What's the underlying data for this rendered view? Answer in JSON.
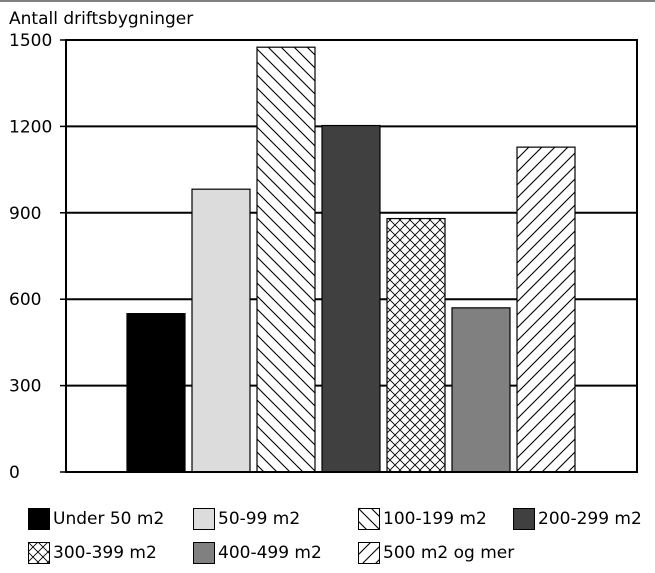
{
  "chart_data": {
    "type": "bar",
    "ylabel": "Antall driftsbygninger",
    "ylim": [
      0,
      1500
    ],
    "yticks": [
      "0",
      "300",
      "600",
      "900",
      "1200",
      "1500"
    ],
    "grid": true,
    "legend_position": "bottom",
    "series": [
      {
        "name": "Under 50 m2",
        "value": 550,
        "color": "#000000",
        "pattern": "solid"
      },
      {
        "name": "50-99 m2",
        "value": 982,
        "color": "#dcdcdc",
        "pattern": "solid"
      },
      {
        "name": "100-199 m2",
        "value": 1475,
        "color": "#ffffff",
        "pattern": "backward-diagonal"
      },
      {
        "name": "200-299 m2",
        "value": 1203,
        "color": "#404040",
        "pattern": "solid"
      },
      {
        "name": "300-399 m2",
        "value": 880,
        "color": "#ffffff",
        "pattern": "crosshatch"
      },
      {
        "name": "400-499 m2",
        "value": 570,
        "color": "#808080",
        "pattern": "solid"
      },
      {
        "name": "500 m2 og mer",
        "value": 1128,
        "color": "#ffffff",
        "pattern": "forward-diagonal"
      }
    ]
  }
}
